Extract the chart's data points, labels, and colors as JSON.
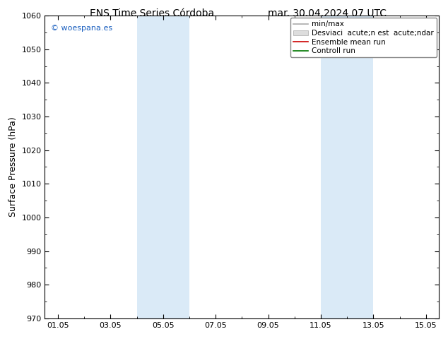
{
  "title_left": "ENS Time Series Córdoba",
  "title_right": "mar. 30.04.2024 07 UTC",
  "ylabel": "Surface Pressure (hPa)",
  "ylim": [
    970,
    1060
  ],
  "yticks": [
    970,
    980,
    990,
    1000,
    1010,
    1020,
    1030,
    1040,
    1050,
    1060
  ],
  "xlabels": [
    "01.05",
    "03.05",
    "05.05",
    "07.05",
    "09.05",
    "11.05",
    "13.05",
    "15.05"
  ],
  "xtick_positions": [
    1,
    3,
    5,
    7,
    9,
    11,
    13,
    15
  ],
  "xlim": [
    0.5,
    15.5
  ],
  "shade_bands": [
    {
      "start": 4.0,
      "end": 6.0
    },
    {
      "start": 11.0,
      "end": 13.0
    }
  ],
  "shade_color": "#daeaf7",
  "bg_color": "#ffffff",
  "watermark": "© woespana.es",
  "watermark_color": "#1a5fbf",
  "legend_line_color": "#aaaaaa",
  "legend_fill_color": "#dddddd",
  "legend_red": "#cc0000",
  "legend_green": "#007700",
  "title_fontsize": 10,
  "ylabel_fontsize": 9,
  "tick_fontsize": 8,
  "watermark_fontsize": 8,
  "legend_fontsize": 7.5
}
